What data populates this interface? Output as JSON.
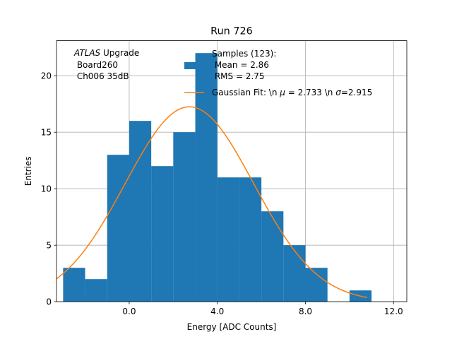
{
  "chart_data": {
    "type": "bar",
    "title": "Run 726",
    "xlabel": "Energy [ADC Counts]",
    "ylabel": "Entries",
    "xlim": [
      -3.3,
      12.6
    ],
    "ylim": [
      0,
      23.1
    ],
    "grid": true,
    "x_ticks": [
      0,
      4,
      8,
      12
    ],
    "x_tick_labels": [
      "0.0",
      "4.0",
      "8.0",
      "12.0"
    ],
    "y_ticks": [
      0,
      5,
      10,
      15,
      20
    ],
    "y_tick_labels": [
      "0",
      "5",
      "10",
      "15",
      "20"
    ],
    "histogram": {
      "name": "Samples (123):\n Mean = 2.86\n RMS = 2.75",
      "color": "#1f77b4",
      "bin_edges": [
        -3,
        -2,
        -1,
        0,
        1,
        2,
        3,
        4,
        5,
        6,
        7,
        8,
        9,
        10,
        11
      ],
      "counts": [
        3,
        2,
        13,
        16,
        12,
        15,
        22,
        11,
        11,
        8,
        5,
        3,
        0,
        1
      ]
    },
    "fit": {
      "name": "Gaussian Fit: \\n $\\mu$ = 2.733 \\n $\\sigma$=2.915",
      "color": "#ff7f0e",
      "mu": 2.733,
      "sigma": 2.915,
      "amplitude": 17.25,
      "x_range": [
        -3.3,
        10.8
      ]
    },
    "annotation": {
      "line1_italic": "ATLAS",
      "line1_rest": " Upgrade",
      "line2": " Board260",
      "line3": " Ch006 35dB"
    },
    "legend": {
      "placement": "top-center",
      "hist_lines": [
        "Samples (123):",
        " Mean = 2.86",
        " RMS = 2.75"
      ],
      "fit_prefix": "Gaussian Fit: \\n ",
      "fit_mu_symbol": "μ",
      "fit_mid": " = 2.733 \\n ",
      "fit_sigma_symbol": "σ",
      "fit_suffix": "=2.915"
    }
  }
}
